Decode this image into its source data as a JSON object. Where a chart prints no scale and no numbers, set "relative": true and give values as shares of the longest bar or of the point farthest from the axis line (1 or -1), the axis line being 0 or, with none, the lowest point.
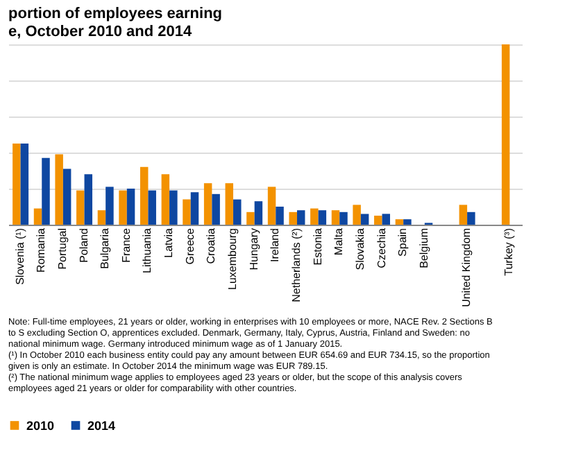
{
  "chart_data": {
    "type": "bar",
    "relative": true,
    "title": [
      "portion of employees earning",
      "e, October 2010 and 2014"
    ],
    "categories": [
      "Slovenia (¹)",
      "Romania",
      "Portugal",
      "Poland",
      "Bulgaria",
      "France",
      "Lithuania",
      "Latvia",
      "Greece",
      "Croatia",
      "Luxembourg",
      "Hungary",
      "Ireland",
      "Netherlands (²)",
      "Estonia",
      "Malta",
      "Slovakia",
      "Czechia",
      "Spain",
      "Belgium",
      null,
      "United Kingdom",
      null,
      "Turkey (³)"
    ],
    "series": [
      {
        "name": "2010",
        "color": "#f39200",
        "values": [
          0.45,
          0.09,
          0.39,
          0.19,
          0.08,
          0.19,
          0.32,
          0.28,
          0.14,
          0.23,
          0.23,
          0.07,
          0.21,
          0.07,
          0.09,
          0.08,
          0.11,
          0.05,
          0.03,
          null,
          null,
          0.11,
          null,
          1
        ]
      },
      {
        "name": "2014",
        "color": "#0e47a1",
        "values": [
          0.45,
          0.37,
          0.31,
          0.28,
          0.21,
          0.2,
          0.19,
          0.19,
          0.18,
          0.17,
          0.14,
          0.13,
          0.1,
          0.08,
          0.08,
          0.07,
          0.06,
          0.06,
          0.03,
          0.01,
          null,
          0.07,
          null,
          null
        ]
      }
    ],
    "grid": "y",
    "legend": "bottom",
    "annotations": [
      "Note: Full-time employees, 21 years or older, working in enterprises with 10 employees or more, NACE Rev. 2 Sections B to S excluding Section O, apprentices excluded. Denmark, Germany, Italy, Cyprus, Austria, Finland and Sweden: no national minimum wage. Germany introduced minimum wage as of 1 January 2015.",
      "(¹) In October 2010 each business entity could pay any amount between EUR 654.69 and EUR 734.15, so the proportion given is only an estimate. In October 2014 the minimum wage was EUR 789.15.",
      "(²) The national minimum wage applies to employees aged 23 years or older, but the scope of this analysis covers employees aged 21 years or older for comparability with other countries."
    ]
  }
}
